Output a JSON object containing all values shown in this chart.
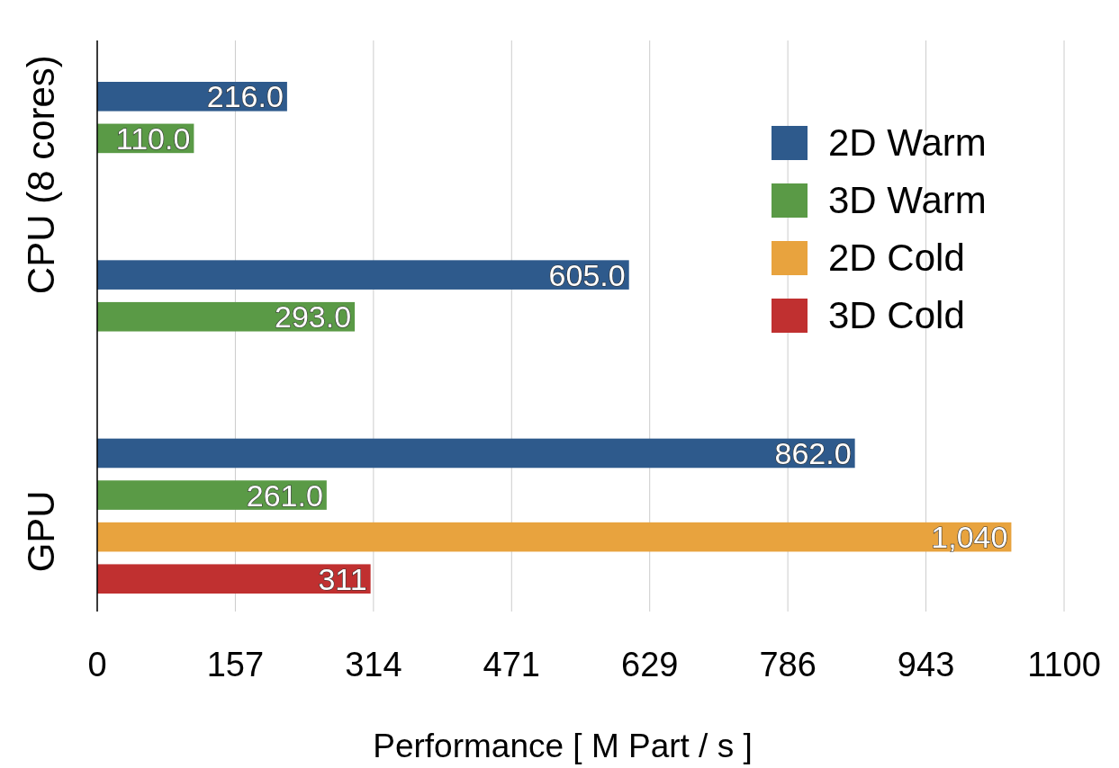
{
  "chart_data": {
    "type": "bar",
    "orientation": "horizontal",
    "categories": [
      "CPU (8 cores)",
      null,
      "GPU"
    ],
    "series": [
      {
        "name": "2D Warm",
        "color": "#2e5a8c",
        "values": [
          216,
          605,
          862
        ],
        "value_labels": [
          "216.0",
          "605.0",
          "862.0"
        ]
      },
      {
        "name": "3D Warm",
        "color": "#5a9a46",
        "values": [
          110,
          293,
          261
        ],
        "value_labels": [
          "110.0",
          "293.0",
          "261.0"
        ]
      },
      {
        "name": "2D Cold",
        "color": "#e8a33e",
        "values": [
          null,
          null,
          1040
        ],
        "value_labels": [
          null,
          null,
          "1,040"
        ]
      },
      {
        "name": "3D Cold",
        "color": "#c03030",
        "values": [
          null,
          null,
          311
        ],
        "value_labels": [
          null,
          null,
          "311"
        ]
      }
    ],
    "xlabel": "Performance [ M Part / s ]",
    "xlim": [
      0,
      1100
    ],
    "xticks": [
      0,
      {
        "value": 157.14,
        "label": "157"
      },
      {
        "value": 314.29,
        "label": "314"
      },
      {
        "value": 471.43,
        "label": "471"
      },
      {
        "value": 628.57,
        "label": "629"
      },
      {
        "value": 785.71,
        "label": "786"
      },
      {
        "value": 942.86,
        "label": "943"
      },
      1100
    ],
    "grid": "x",
    "legend": "top right"
  }
}
